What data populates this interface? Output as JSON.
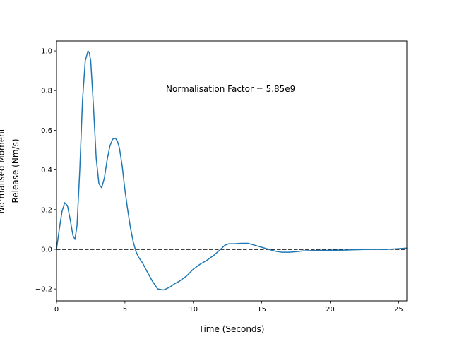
{
  "chart_data": {
    "type": "line",
    "title": "",
    "xlabel": "Time (Seconds)",
    "ylabel_lines": [
      "Normalised Moment",
      "Release (Nm/s)"
    ],
    "xlim": [
      0,
      25.6
    ],
    "ylim": [
      -0.26,
      1.05
    ],
    "x_ticks": [
      0,
      5,
      10,
      15,
      20,
      25
    ],
    "y_ticks": [
      -0.2,
      0.0,
      0.2,
      0.4,
      0.6,
      0.8,
      1.0
    ],
    "x_tick_labels": [
      "0",
      "5",
      "10",
      "15",
      "20",
      "25"
    ],
    "y_tick_labels": [
      "−0.2",
      "0.0",
      "0.2",
      "0.4",
      "0.6",
      "0.8",
      "1.0"
    ],
    "grid": false,
    "annotation": "Normalisation Factor = 5.85e9",
    "reference_line": {
      "y": 0,
      "style": "dashed",
      "color": "#000000"
    },
    "series": [
      {
        "color": "#1f77b4",
        "x": [
          0,
          0.2,
          0.4,
          0.6,
          0.8,
          1.0,
          1.2,
          1.35,
          1.5,
          1.7,
          1.9,
          2.1,
          2.3,
          2.4,
          2.5,
          2.7,
          2.9,
          3.1,
          3.3,
          3.5,
          3.7,
          3.9,
          4.1,
          4.3,
          4.45,
          4.6,
          4.8,
          5.0,
          5.2,
          5.4,
          5.6,
          5.8,
          6.0,
          6.3,
          6.6,
          7.0,
          7.4,
          7.8,
          8.0,
          8.3,
          8.6,
          9.0,
          9.5,
          10.0,
          10.5,
          11.0,
          11.5,
          12.0,
          12.3,
          12.6,
          13.0,
          13.5,
          14.0,
          14.5,
          15.0,
          15.5,
          16.0,
          16.5,
          17.0,
          17.5,
          18.0,
          19.0,
          20.0,
          21.0,
          22.0,
          23.0,
          24.0,
          25.0,
          25.6
        ],
        "y": [
          0.0,
          0.1,
          0.19,
          0.235,
          0.22,
          0.15,
          0.07,
          0.05,
          0.12,
          0.4,
          0.75,
          0.95,
          1.0,
          0.99,
          0.95,
          0.72,
          0.46,
          0.33,
          0.31,
          0.36,
          0.45,
          0.52,
          0.555,
          0.56,
          0.545,
          0.51,
          0.42,
          0.3,
          0.2,
          0.11,
          0.04,
          -0.01,
          -0.04,
          -0.07,
          -0.11,
          -0.16,
          -0.2,
          -0.205,
          -0.2,
          -0.19,
          -0.175,
          -0.16,
          -0.135,
          -0.1,
          -0.075,
          -0.055,
          -0.03,
          0.0,
          0.02,
          0.028,
          0.028,
          0.03,
          0.03,
          0.02,
          0.01,
          0.0,
          -0.01,
          -0.015,
          -0.015,
          -0.012,
          -0.008,
          -0.006,
          -0.005,
          -0.004,
          -0.002,
          0.0,
          -0.001,
          0.003,
          0.006
        ]
      }
    ]
  }
}
